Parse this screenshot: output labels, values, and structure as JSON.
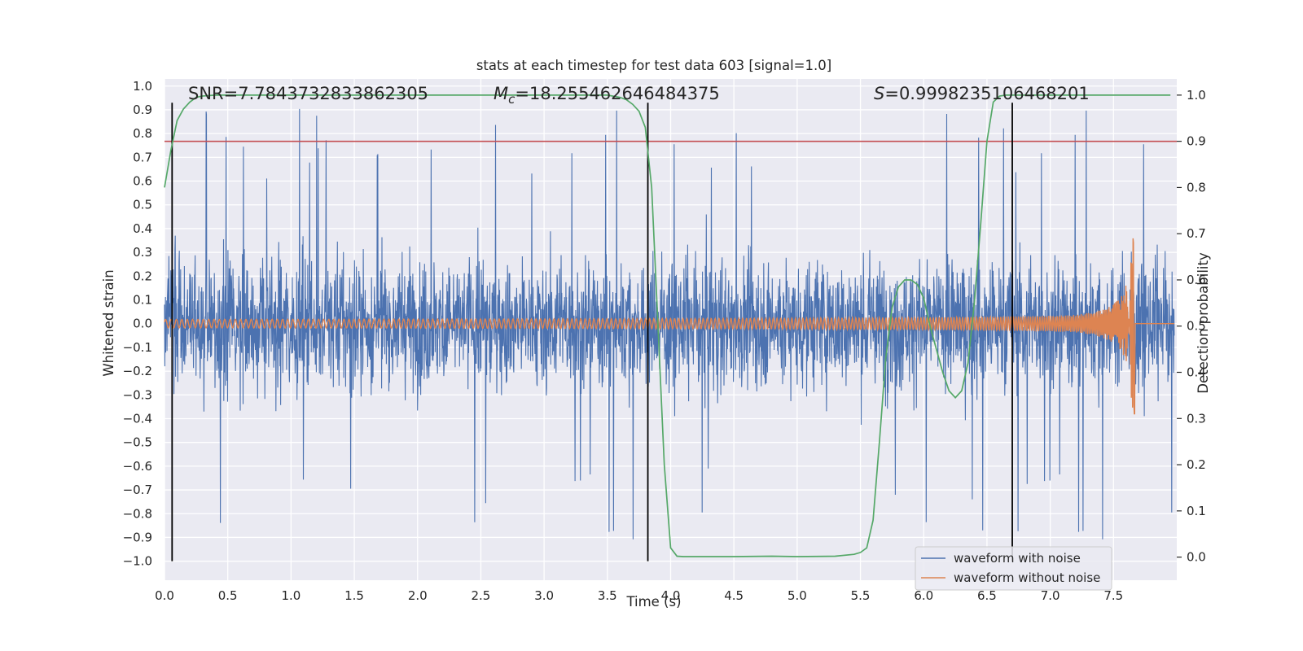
{
  "chart_data": {
    "type": "line",
    "title": "stats at each timestep for test data 603 [signal=1.0]",
    "xlabel": "Time (s)",
    "ylabel_left": "Whitened strain",
    "ylabel_right": "Detection probability",
    "xlim": [
      0.0,
      8.0
    ],
    "ylim_left": [
      -1.08,
      1.03
    ],
    "ylim_right": [
      -0.05,
      1.035
    ],
    "x_ticks": [
      "0.0",
      "0.5",
      "1.0",
      "1.5",
      "2.0",
      "2.5",
      "3.0",
      "3.5",
      "4.0",
      "4.5",
      "5.0",
      "5.5",
      "6.0",
      "6.5",
      "7.0",
      "7.5"
    ],
    "y_ticks_left": [
      "1.0",
      "0.9",
      "0.8",
      "0.7",
      "0.6",
      "0.5",
      "0.4",
      "0.3",
      "0.2",
      "0.1",
      "0.0",
      "−0.1",
      "−0.2",
      "−0.3",
      "−0.4",
      "−0.5",
      "−0.6",
      "−0.7",
      "−0.8",
      "−0.9",
      "−1.0"
    ],
    "y_ticks_right": [
      "1.0",
      "0.9",
      "0.8",
      "0.7",
      "0.6",
      "0.5",
      "0.4",
      "0.3",
      "0.2",
      "0.1",
      "0.0"
    ],
    "grid": true,
    "legend_placement": "lower-right",
    "annotations": {
      "snr": "SNR=7.7843732833862305",
      "mc_symbol": "M",
      "mc_sub": "c",
      "mc_value": "=18.255462646484375",
      "s_symbol": "S",
      "s_value": "=0.9998235106468201"
    },
    "threshold_probability": 0.9,
    "event_lines_x": [
      0.06,
      3.82,
      6.7
    ],
    "series": [
      {
        "name": "waveform with noise",
        "color": "#4c72b0",
        "axis": "left",
        "kind": "noise",
        "approx_amplitude_range": [
          -1.0,
          0.93
        ]
      },
      {
        "name": "waveform without noise",
        "color": "#dd8452",
        "axis": "left",
        "kind": "chirp",
        "merger_time": 7.67
      },
      {
        "name": "",
        "color": "#55a868",
        "axis": "right",
        "x": [
          0.0,
          0.05,
          0.1,
          0.15,
          0.2,
          0.25,
          0.3,
          0.4,
          0.5,
          1.0,
          2.0,
          3.0,
          3.5,
          3.6,
          3.65,
          3.7,
          3.75,
          3.8,
          3.85,
          3.9,
          3.95,
          4.0,
          4.05,
          4.1,
          4.5,
          4.8,
          5.0,
          5.3,
          5.45,
          5.5,
          5.55,
          5.6,
          5.65,
          5.7,
          5.75,
          5.8,
          5.85,
          5.9,
          5.95,
          6.0,
          6.05,
          6.1,
          6.15,
          6.2,
          6.25,
          6.3,
          6.35,
          6.4,
          6.45,
          6.5,
          6.55,
          6.6,
          6.65,
          6.7,
          6.75,
          6.8,
          6.85,
          6.9,
          7.0,
          7.5,
          7.95
        ],
        "values": [
          0.8,
          0.88,
          0.945,
          0.97,
          0.985,
          0.995,
          0.998,
          1.0,
          1.0,
          1.0,
          1.0,
          1.0,
          1.0,
          0.995,
          0.99,
          0.98,
          0.965,
          0.93,
          0.8,
          0.5,
          0.2,
          0.02,
          0.002,
          0.001,
          0.001,
          0.002,
          0.001,
          0.002,
          0.006,
          0.01,
          0.02,
          0.08,
          0.25,
          0.43,
          0.54,
          0.585,
          0.6,
          0.6,
          0.59,
          0.56,
          0.5,
          0.45,
          0.4,
          0.36,
          0.345,
          0.36,
          0.42,
          0.55,
          0.72,
          0.9,
          0.985,
          0.998,
          1.0,
          1.0,
          1.0,
          1.0,
          1.0,
          1.0,
          1.0,
          1.0,
          1.0
        ]
      }
    ],
    "colors": {
      "background": "#eaeaf2",
      "grid": "#ffffff",
      "threshold": "#c44e52",
      "event_line": "#000000"
    }
  }
}
